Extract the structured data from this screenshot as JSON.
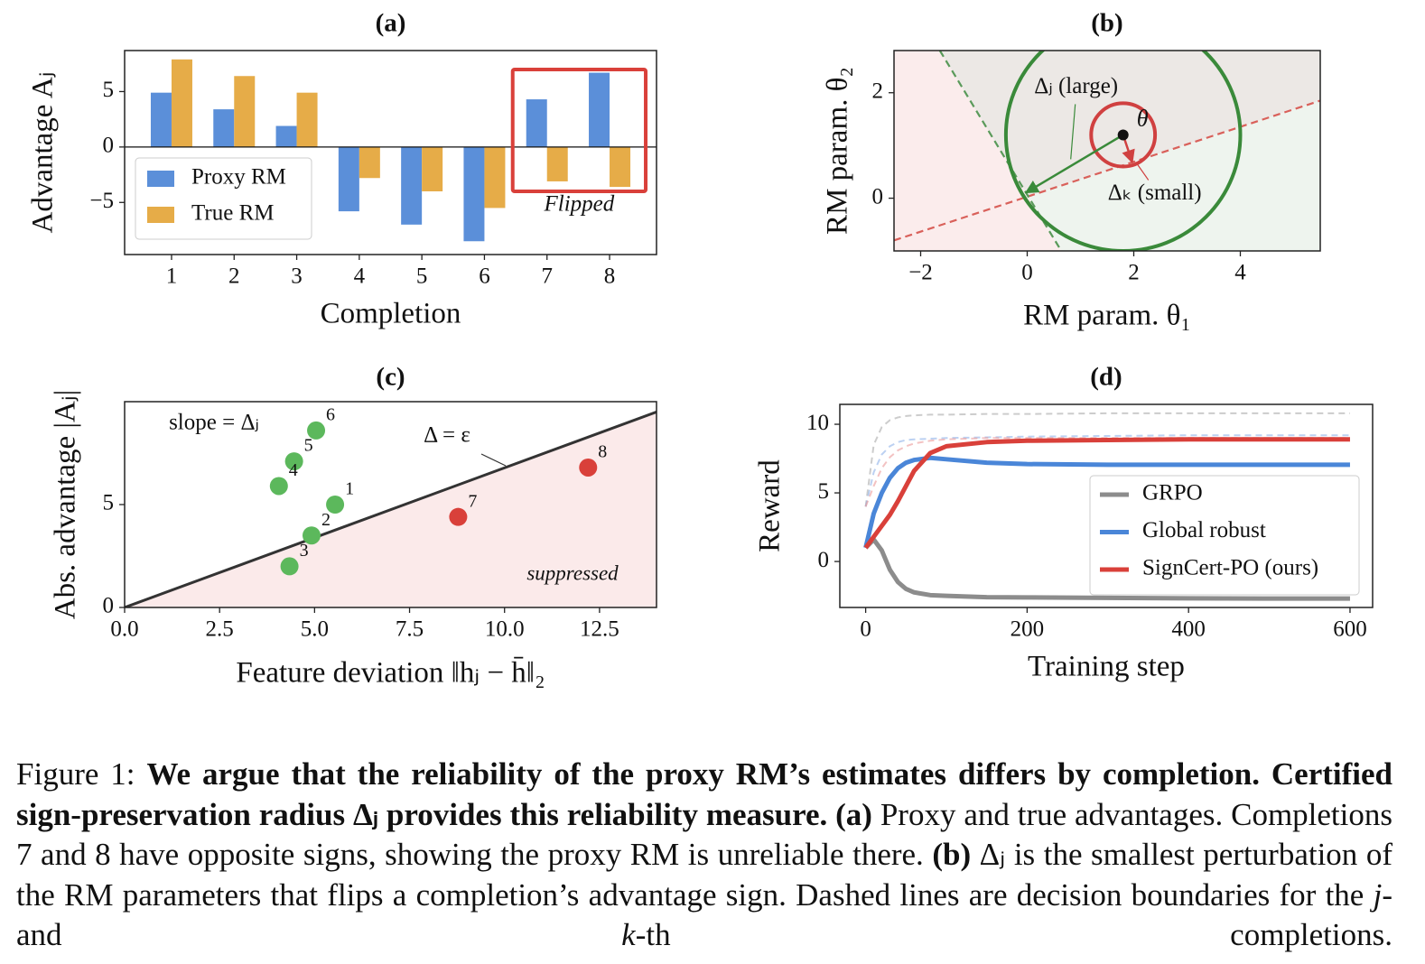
{
  "chart_data": [
    {
      "type": "bar",
      "title": "(a)",
      "xlabel": "Completion",
      "ylabel": "Advantage Aⱼ",
      "categories": [
        "1",
        "2",
        "3",
        "4",
        "5",
        "6",
        "7",
        "8"
      ],
      "series": [
        {
          "name": "Proxy RM",
          "color": "#5b8fd9",
          "values": [
            4.9,
            3.4,
            1.9,
            -5.8,
            -7.0,
            -8.5,
            4.3,
            6.7
          ]
        },
        {
          "name": "True RM",
          "color": "#e6ac48",
          "values": [
            7.9,
            6.4,
            4.9,
            -2.8,
            -4.0,
            -5.5,
            -3.1,
            -3.6
          ]
        }
      ],
      "ylim": [
        -9.7,
        8.7
      ],
      "yticks": [
        {
          "value": -5,
          "label": "−5"
        },
        0,
        5
      ],
      "legend": "lower left",
      "annotation": "Flipped",
      "annotation_color": "#d9403a"
    },
    {
      "type": "geometry",
      "title": "(b)",
      "xlabel": "RM param. θ₁",
      "ylabel": "RM param. θ₂",
      "xlim": [
        -2.5,
        5.5
      ],
      "ylim": [
        -1,
        2.8
      ],
      "xticks": [
        {
          "value": -2,
          "label": "−2"
        },
        0,
        2,
        4
      ],
      "yticks": [
        0,
        2
      ],
      "point": {
        "x": 1.8,
        "y": 1.2,
        "label": "θ"
      },
      "circles": [
        {
          "r": 2.2,
          "color": "#3a8a3a",
          "label": "Δⱼ (large)"
        },
        {
          "r": 0.6,
          "color": "#d04040",
          "label": "Δₖ (small)"
        }
      ],
      "lines": [
        {
          "x": [
            -2.5,
            5.5
          ],
          "y": [
            -0.8,
            1.85
          ],
          "color": "#d9605a"
        },
        {
          "x": [
            -1.64,
            0.64
          ],
          "y": [
            2.8,
            -1
          ],
          "color": "#5a9a5a"
        }
      ]
    },
    {
      "type": "scatter",
      "title": "(c)",
      "xlabel": "Feature deviation ‖hⱼ − h̄‖₂",
      "ylabel": "Abs. advantage |Aⱼ|",
      "xlim": [
        0,
        14
      ],
      "ylim": [
        0,
        10
      ],
      "xticks": [
        {
          "value": 0,
          "label": "0.0"
        },
        2.5,
        {
          "value": 5,
          "label": "5.0"
        },
        7.5,
        {
          "value": 10,
          "label": "10.0"
        },
        12.5
      ],
      "yticks": [
        0,
        5
      ],
      "series": [
        {
          "color": "#5cb85c",
          "x": [
            5.54,
            4.92,
            4.34,
            4.06,
            4.46,
            5.04
          ],
          "values": [
            5.0,
            3.5,
            2.0,
            5.9,
            7.1,
            8.6
          ],
          "labels": [
            "1",
            "2",
            "3",
            "4",
            "5",
            "6"
          ]
        },
        {
          "color": "#d9403a",
          "x": [
            8.78,
            12.2
          ],
          "values": [
            4.4,
            6.8
          ],
          "labels": [
            "7",
            "8"
          ]
        }
      ],
      "line": {
        "x": [
          0,
          14
        ],
        "y": [
          0,
          9.5
        ],
        "color": "#333333"
      },
      "annotations": [
        "slope = Δⱼ",
        "Δ = ε",
        "suppressed"
      ]
    },
    {
      "type": "line",
      "title": "(d)",
      "xlabel": "Training step",
      "ylabel": "Reward",
      "xlim": [
        -32,
        628
      ],
      "ylim": [
        -3.35,
        11.45
      ],
      "xticks": [
        0,
        200,
        400,
        600
      ],
      "yticks": [
        0,
        5,
        10
      ],
      "x": [
        0,
        10,
        20,
        30,
        40,
        50,
        60,
        80,
        100,
        150,
        200,
        300,
        400,
        500,
        600
      ],
      "series": [
        {
          "color": "#aaaaaa",
          "dashed": true,
          "values": [
            4,
            8.5,
            9.8,
            10.3,
            10.5,
            10.6,
            10.65,
            10.7,
            10.7,
            10.75,
            10.75,
            10.8,
            10.8,
            10.8,
            10.8
          ]
        },
        {
          "color": "#8fb3ea",
          "dashed": true,
          "values": [
            4,
            6.5,
            7.8,
            8.4,
            8.7,
            8.85,
            8.9,
            8.95,
            9.0,
            9.05,
            9.1,
            9.15,
            9.2,
            9.2,
            9.2
          ]
        },
        {
          "color": "#eb9a9a",
          "dashed": true,
          "values": [
            4,
            5.5,
            6.8,
            7.6,
            8.1,
            8.4,
            8.6,
            8.8,
            8.9,
            9.0,
            9.0,
            9.0,
            9.0,
            9.0,
            9.0
          ]
        },
        {
          "name": "GRPO",
          "color": "#8c8c8c",
          "values": [
            1,
            1.6,
            0.8,
            -0.6,
            -1.5,
            -2.0,
            -2.25,
            -2.45,
            -2.5,
            -2.6,
            -2.62,
            -2.65,
            -2.68,
            -2.7,
            -2.7
          ]
        },
        {
          "name": "Global robust",
          "color": "#4a86d8",
          "values": [
            1,
            3.5,
            5.0,
            6.1,
            6.8,
            7.2,
            7.4,
            7.55,
            7.45,
            7.2,
            7.1,
            7.05,
            7.05,
            7.05,
            7.05
          ]
        },
        {
          "name": "SignCert-PO (ours)",
          "color": "#d9403a",
          "values": [
            1,
            1.8,
            2.6,
            3.4,
            4.4,
            5.5,
            6.6,
            7.9,
            8.4,
            8.7,
            8.8,
            8.85,
            8.9,
            8.9,
            8.9
          ]
        }
      ],
      "legend": "lower right"
    }
  ],
  "caption": [
    {
      "text": "Figure 1: ",
      "bold": false,
      "italic": false
    },
    {
      "text": "We argue that the reliability of the proxy RM’s estimates differs by completion. Certified sign-preservation radius Δⱼ provides this reliability measure. ",
      "bold": true,
      "italic": false
    },
    {
      "text": "(a)",
      "bold": true,
      "italic": false
    },
    {
      "text": " Proxy and true advantages. Completions 7 and 8 have opposite signs, showing the proxy RM is unreliable there. ",
      "bold": false,
      "italic": false
    },
    {
      "text": "(b)",
      "bold": true,
      "italic": false
    },
    {
      "text": " Δⱼ is the smallest perturbation of the RM parameters that flips a completion’s advantage sign. Dashed lines are decision boundaries for the ",
      "bold": false,
      "italic": false
    },
    {
      "text": "j",
      "bold": false,
      "italic": true
    },
    {
      "text": "- and ",
      "bold": false,
      "italic": false
    },
    {
      "text": "k",
      "bold": false,
      "italic": true
    },
    {
      "text": "-th completions.",
      "bold": false,
      "italic": false
    }
  ]
}
